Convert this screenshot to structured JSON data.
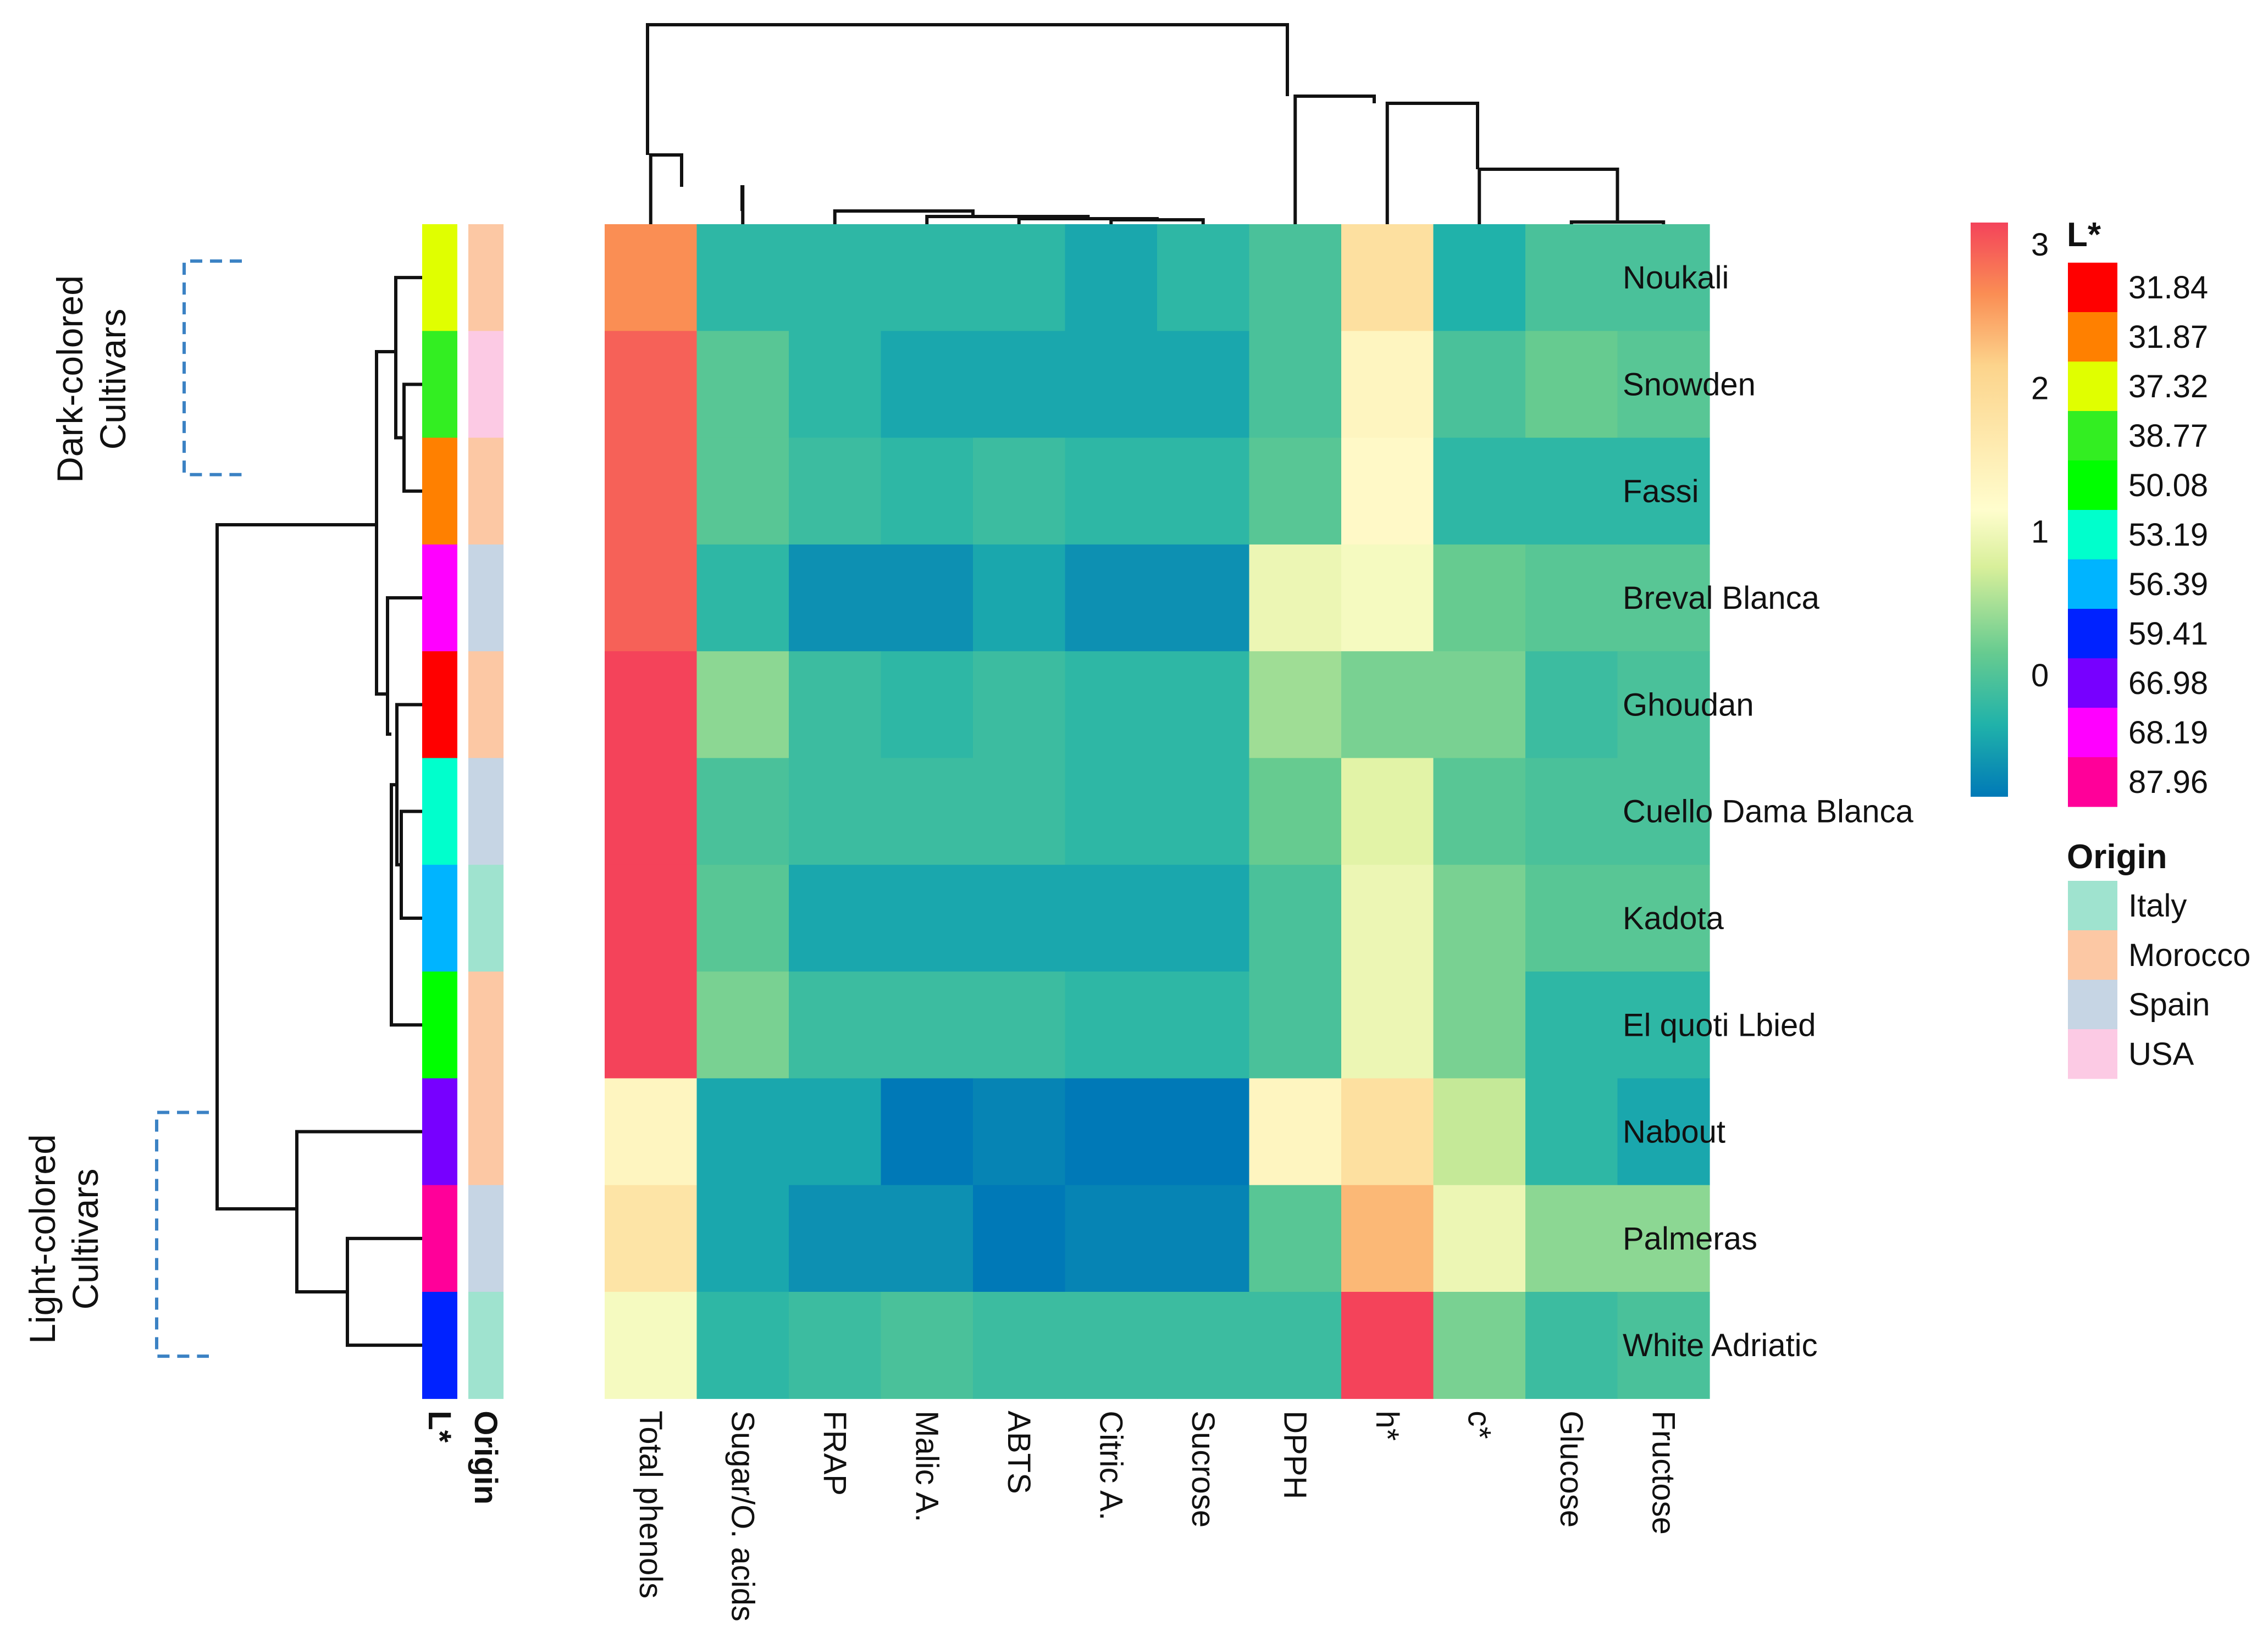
{
  "chart_data": {
    "type": "heatmap",
    "title": "",
    "rows": [
      "Noukali",
      "Snowden",
      "Fassi",
      "Breval Blanca",
      "Ghoudan",
      "Cuello Dama Blanca",
      "Kadota",
      "El quoti Lbied",
      "Nabout",
      "Palmeras",
      "White Adriatic"
    ],
    "columns": [
      "Total phenols",
      "Sugar/O. acids",
      "FRAP",
      "Malic A.",
      "ABTS",
      "Citric A.",
      "Sucrose",
      "DPPH",
      "h*",
      "c*",
      "Glucose",
      "Fructose"
    ],
    "values": [
      [
        2.5,
        -0.4,
        -0.4,
        -0.4,
        -0.4,
        -0.6,
        -0.4,
        -0.2,
        1.7,
        -0.5,
        -0.2,
        -0.2
      ],
      [
        2.8,
        -0.1,
        -0.4,
        -0.6,
        -0.6,
        -0.6,
        -0.6,
        -0.2,
        1.2,
        -0.2,
        0.0,
        -0.1
      ],
      [
        2.8,
        -0.1,
        -0.3,
        -0.4,
        -0.3,
        -0.4,
        -0.4,
        -0.1,
        1.1,
        -0.4,
        -0.4,
        -0.4
      ],
      [
        2.8,
        -0.4,
        -0.8,
        -0.8,
        -0.6,
        -0.8,
        -0.8,
        0.8,
        0.9,
        0.0,
        -0.1,
        -0.1
      ],
      [
        3.0,
        0.2,
        -0.3,
        -0.4,
        -0.3,
        -0.4,
        -0.4,
        0.3,
        0.1,
        0.1,
        -0.3,
        -0.2
      ],
      [
        3.0,
        -0.2,
        -0.3,
        -0.3,
        -0.3,
        -0.4,
        -0.4,
        0.0,
        0.7,
        -0.1,
        -0.2,
        -0.2
      ],
      [
        3.0,
        -0.1,
        -0.6,
        -0.6,
        -0.6,
        -0.6,
        -0.6,
        -0.2,
        0.8,
        0.1,
        -0.1,
        -0.1
      ],
      [
        3.0,
        0.1,
        -0.3,
        -0.3,
        -0.3,
        -0.4,
        -0.4,
        -0.2,
        0.8,
        0.1,
        -0.4,
        -0.4
      ],
      [
        1.2,
        -0.6,
        -0.6,
        -1.1,
        -0.9,
        -1.0,
        -1.0,
        1.2,
        1.7,
        0.5,
        -0.4,
        -0.6
      ],
      [
        1.6,
        -0.6,
        -0.8,
        -0.8,
        -1.0,
        -0.9,
        -0.9,
        -0.1,
        2.2,
        0.8,
        0.2,
        0.2
      ],
      [
        0.9,
        -0.4,
        -0.3,
        -0.2,
        -0.3,
        -0.3,
        -0.3,
        -0.3,
        3.0,
        0.1,
        -0.3,
        -0.2
      ]
    ],
    "color_scale": {
      "min": -1,
      "max": 3,
      "ticks": [
        "3",
        "2",
        "1",
        "0"
      ]
    },
    "row_annotations": {
      "L_star": [
        "37.32",
        "38.77",
        "31.87",
        "68.19",
        "31.84",
        "53.19",
        "56.39",
        "50.08",
        "66.98",
        "87.96",
        "59.41"
      ],
      "Origin": [
        "Morocco",
        "USA",
        "Morocco",
        "Spain",
        "Morocco",
        "Spain",
        "Italy",
        "Morocco",
        "Morocco",
        "Spain",
        "Italy"
      ]
    },
    "annotation_labels": [
      "L*",
      "Origin"
    ],
    "groups": [
      {
        "label_lines": [
          "Dark-colored",
          "Cultivars"
        ],
        "rows": [
          "Noukali",
          "Fassi"
        ]
      },
      {
        "label_lines": [
          "Light-colored",
          "Cultivars"
        ],
        "rows": [
          "Nabout",
          "White Adriatic"
        ]
      }
    ],
    "legend": {
      "lstar_title": "L*",
      "lstar": [
        {
          "value": "31.84",
          "color": "#ff0000"
        },
        {
          "value": "31.87",
          "color": "#ff8000"
        },
        {
          "value": "37.32",
          "color": "#e0ff00"
        },
        {
          "value": "38.77",
          "color": "#33ee22"
        },
        {
          "value": "50.08",
          "color": "#00ff00"
        },
        {
          "value": "53.19",
          "color": "#00ffcc"
        },
        {
          "value": "56.39",
          "color": "#00b4ff"
        },
        {
          "value": "59.41",
          "color": "#0022ff"
        },
        {
          "value": "66.98",
          "color": "#7700ff"
        },
        {
          "value": "68.19",
          "color": "#ff00ff"
        },
        {
          "value": "87.96",
          "color": "#ff0099"
        }
      ],
      "origin_title": "Origin",
      "origin": [
        {
          "name": "Italy",
          "color": "#9fe3cf"
        },
        {
          "name": "Morocco",
          "color": "#fcc8a4"
        },
        {
          "name": "Spain",
          "color": "#c6d5e4"
        },
        {
          "name": "USA",
          "color": "#fccae4"
        }
      ]
    },
    "dendrogram_order": [
      "Total phenols",
      "Sugar/O. acids",
      "FRAP",
      "Malic A.",
      "ABTS",
      "Citric A.",
      "Sucrose",
      "DPPH",
      "h*",
      "c*",
      "Glucose",
      "Fructose"
    ]
  }
}
